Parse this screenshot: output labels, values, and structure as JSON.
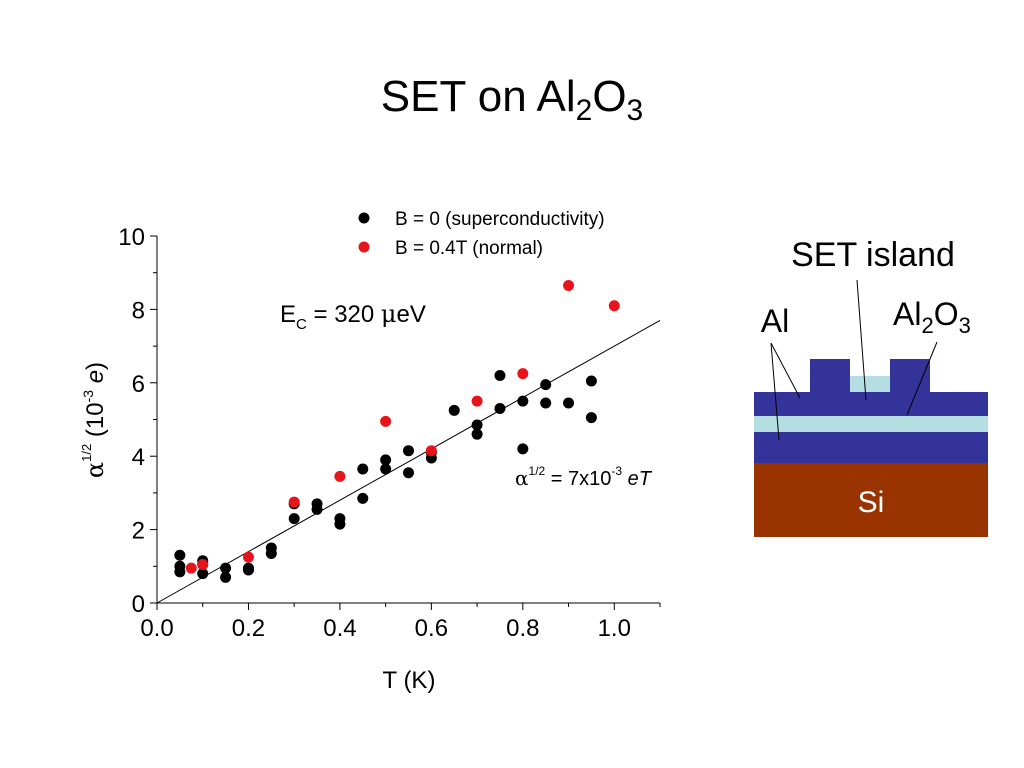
{
  "title": {
    "main": "SET on Al",
    "sub1": "2",
    "mid": "O",
    "sub2": "3"
  },
  "chart_data": {
    "type": "scatter",
    "x_label": "T (K)",
    "y_label": {
      "alpha": "α",
      "sup": "1/2",
      "open": "(10",
      "exp": "-3",
      "unit": "e",
      "close": ")"
    },
    "xlim": [
      0,
      1.1
    ],
    "ylim": [
      0,
      10
    ],
    "x_ticks": [
      "0.0",
      "0.2",
      "0.4",
      "0.6",
      "0.8",
      "1.0"
    ],
    "y_ticks": [
      "0",
      "2",
      "4",
      "6",
      "8",
      "10"
    ],
    "legend": {
      "position": "top-right"
    },
    "series": [
      {
        "name": "B = 0 (superconductivity)",
        "color": "#000000",
        "points": [
          [
            0.05,
            1.3
          ],
          [
            0.05,
            1.0
          ],
          [
            0.05,
            0.85
          ],
          [
            0.1,
            1.15
          ],
          [
            0.1,
            1.05
          ],
          [
            0.1,
            0.8
          ],
          [
            0.15,
            0.95
          ],
          [
            0.15,
            0.7
          ],
          [
            0.2,
            0.95
          ],
          [
            0.2,
            0.9
          ],
          [
            0.25,
            1.5
          ],
          [
            0.25,
            1.35
          ],
          [
            0.3,
            2.7
          ],
          [
            0.3,
            2.3
          ],
          [
            0.35,
            2.7
          ],
          [
            0.35,
            2.55
          ],
          [
            0.4,
            2.3
          ],
          [
            0.4,
            2.15
          ],
          [
            0.45,
            3.65
          ],
          [
            0.45,
            2.85
          ],
          [
            0.5,
            3.9
          ],
          [
            0.5,
            3.65
          ],
          [
            0.55,
            4.15
          ],
          [
            0.55,
            3.55
          ],
          [
            0.6,
            4.1
          ],
          [
            0.6,
            3.95
          ],
          [
            0.65,
            5.25
          ],
          [
            0.7,
            4.85
          ],
          [
            0.7,
            4.6
          ],
          [
            0.75,
            6.2
          ],
          [
            0.75,
            5.3
          ],
          [
            0.8,
            5.5
          ],
          [
            0.8,
            4.2
          ],
          [
            0.85,
            5.95
          ],
          [
            0.85,
            5.45
          ],
          [
            0.9,
            5.45
          ],
          [
            0.95,
            6.05
          ],
          [
            0.95,
            5.05
          ]
        ]
      },
      {
        "name": "B = 0.4T (normal)",
        "color": "#e8141b",
        "points": [
          [
            0.075,
            0.95
          ],
          [
            0.1,
            1.05
          ],
          [
            0.2,
            1.25
          ],
          [
            0.3,
            2.75
          ],
          [
            0.4,
            3.45
          ],
          [
            0.5,
            4.95
          ],
          [
            0.6,
            4.15
          ],
          [
            0.7,
            5.5
          ],
          [
            0.8,
            6.25
          ],
          [
            0.9,
            8.65
          ],
          [
            1.0,
            8.1
          ]
        ]
      }
    ],
    "fit_line": {
      "x": [
        0,
        1.1
      ],
      "y": [
        0,
        7.7
      ]
    },
    "annotations": {
      "ec": {
        "main": "E",
        "sub": "C",
        "rest": " = 320 ",
        "mu": "μ",
        "unit": "eV"
      },
      "fit": {
        "alpha": "α",
        "sup": "1/2",
        "eq": " = 7x10",
        "exp": "-3",
        "var": "eT"
      }
    }
  },
  "diagram": {
    "label_island": "SET island",
    "label_al": "Al",
    "label_al2o3": {
      "a": "Al",
      "s1": "2",
      "b": "O",
      "s2": "3"
    },
    "label_si": "Si",
    "colors": {
      "al": "#33339a",
      "oxide": "#b4dee1",
      "si": "#993300"
    }
  }
}
